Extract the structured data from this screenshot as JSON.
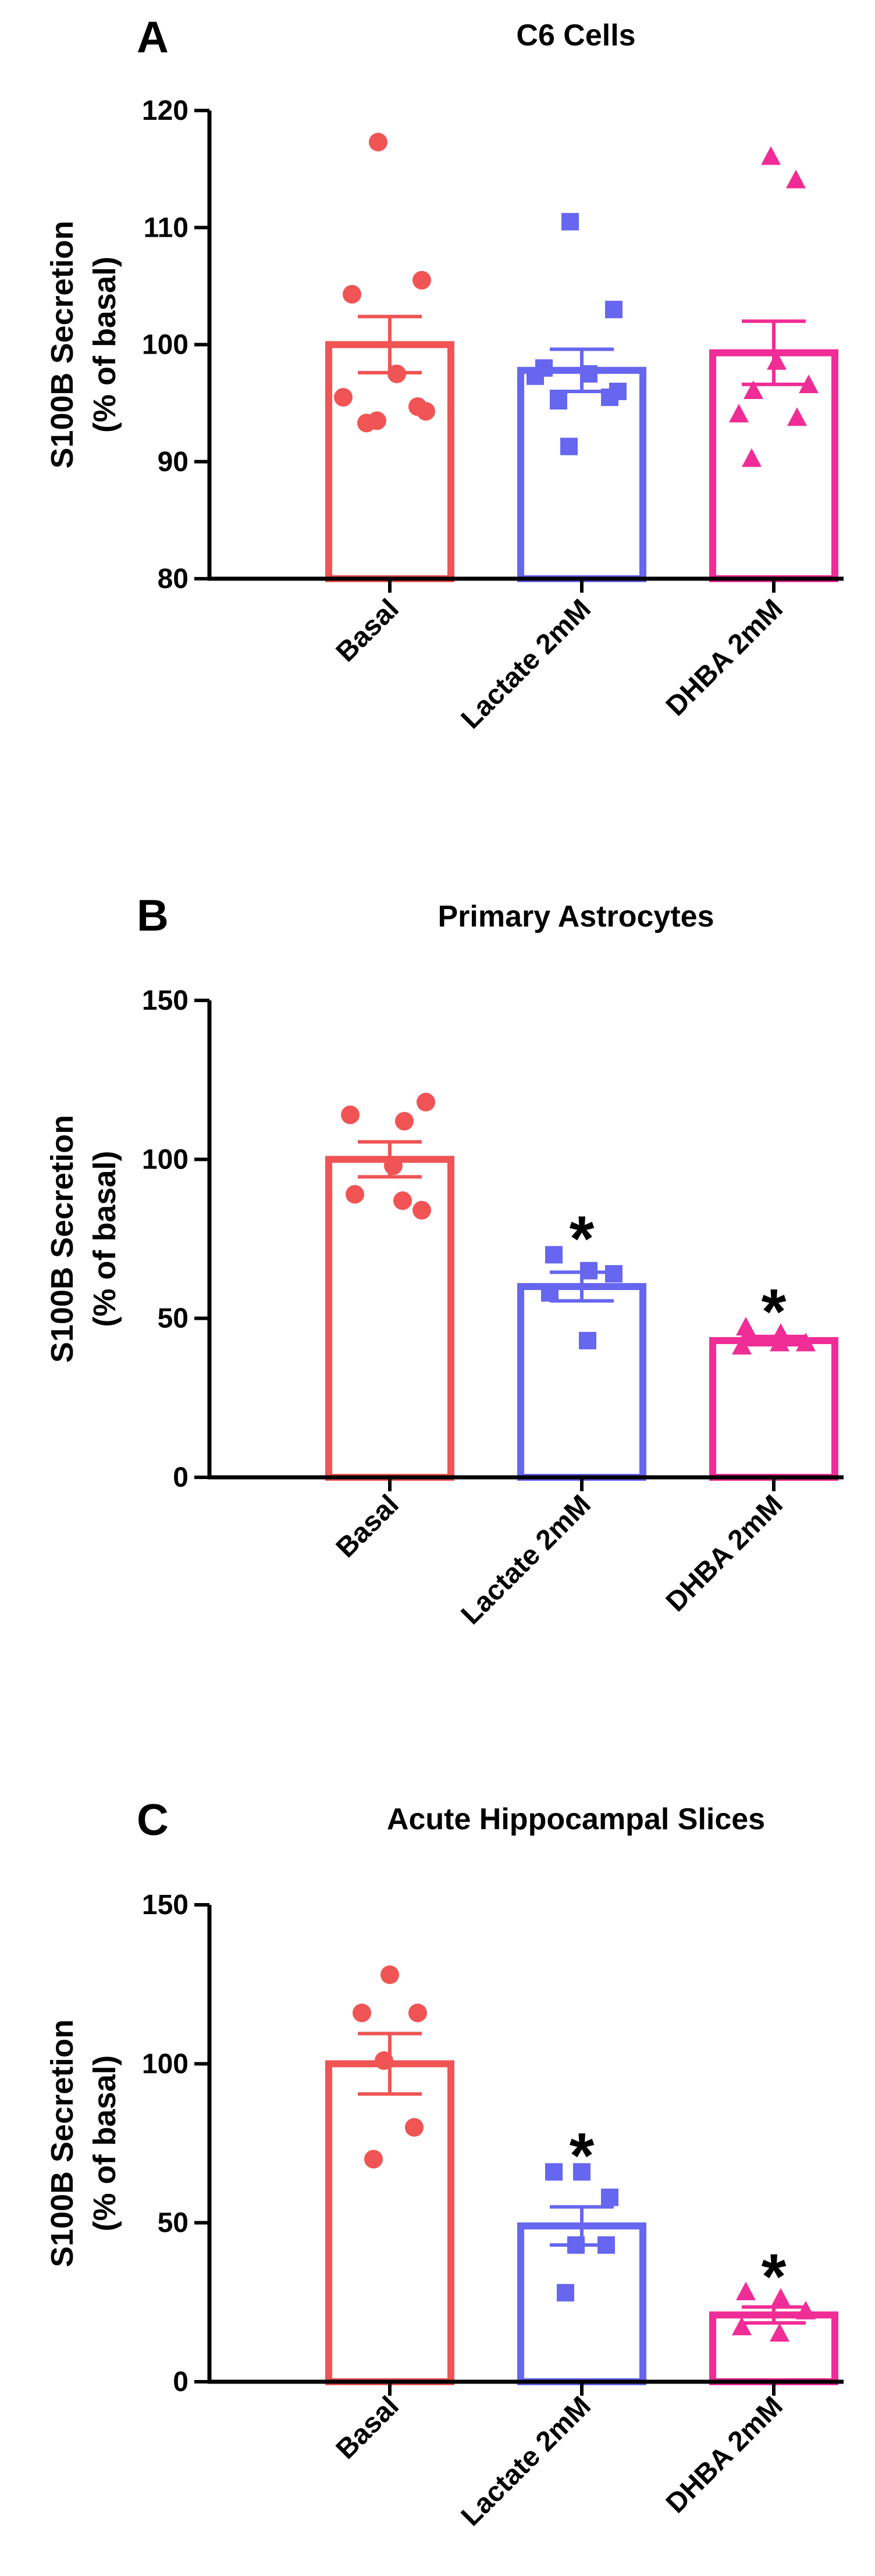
{
  "colors": {
    "basal": "#F05454",
    "lactate": "#6666F0",
    "dhba": "#F02C96",
    "axis": "#000000"
  },
  "chart_data": [
    {
      "panel": "A",
      "type": "bar",
      "title": "C6 Cells",
      "ylabel": "S100B Secretion\n(% of basal)",
      "ylim": [
        80,
        120
      ],
      "yticks": [
        80,
        90,
        100,
        110,
        120
      ],
      "grid": false,
      "categories": [
        "Basal",
        "Lactate 2mM",
        "DHBA 2mM"
      ],
      "series": [
        {
          "category": "Basal",
          "marker": "circle",
          "color": "#F05454",
          "mean": 100,
          "sem": 2.4,
          "points": [
            117.3,
            105.5,
            104.3,
            97.5,
            95.5,
            94.3,
            94.7,
            93.3,
            93.5
          ],
          "significant": false
        },
        {
          "category": "Lactate 2mM",
          "marker": "square",
          "color": "#6666F0",
          "mean": 97.8,
          "sem": 1.8,
          "points": [
            110.5,
            103,
            98,
            97.5,
            97.3,
            96,
            95.5,
            95.2,
            91.3
          ],
          "significant": false
        },
        {
          "category": "DHBA 2mM",
          "marker": "triangle",
          "color": "#F02C96",
          "mean": 99.3,
          "sem": 2.7,
          "points": [
            116,
            114,
            98.5,
            96.5,
            96,
            94,
            93.7,
            90.2
          ],
          "significant": false
        }
      ]
    },
    {
      "panel": "B",
      "type": "bar",
      "title": "Primary Astrocytes",
      "ylabel": "S100B Secretion\n(% of basal)",
      "ylim": [
        0,
        150
      ],
      "yticks": [
        0,
        50,
        100,
        150
      ],
      "grid": false,
      "categories": [
        "Basal",
        "Lactate 2mM",
        "DHBA 2mM"
      ],
      "series": [
        {
          "category": "Basal",
          "marker": "circle",
          "color": "#F05454",
          "mean": 100,
          "sem": 5.5,
          "points": [
            118,
            114,
            112,
            98,
            89,
            87,
            84
          ],
          "significant": false
        },
        {
          "category": "Lactate 2mM",
          "marker": "square",
          "color": "#6666F0",
          "mean": 60,
          "sem": 4.5,
          "points": [
            70,
            65,
            64,
            58,
            43
          ],
          "significant": true
        },
        {
          "category": "DHBA 2mM",
          "marker": "triangle",
          "color": "#F02C96",
          "mean": 43,
          "sem": 1.3,
          "points": [
            47,
            45,
            42,
            41,
            42
          ],
          "significant": true
        }
      ]
    },
    {
      "panel": "C",
      "type": "bar",
      "title": "Acute Hippocampal Slices",
      "ylabel": "S100B Secretion\n(% of basal)",
      "ylim": [
        0,
        150
      ],
      "yticks": [
        0,
        50,
        100,
        150
      ],
      "grid": false,
      "categories": [
        "Basal",
        "Lactate 2mM",
        "DHBA 2mM"
      ],
      "series": [
        {
          "category": "Basal",
          "marker": "circle",
          "color": "#F05454",
          "mean": 100,
          "sem": 9.5,
          "points": [
            128,
            116,
            116,
            101,
            80,
            70
          ],
          "significant": false
        },
        {
          "category": "Lactate 2mM",
          "marker": "square",
          "color": "#6666F0",
          "mean": 49,
          "sem": 6,
          "points": [
            66,
            66,
            58,
            43,
            43,
            28
          ],
          "significant": true
        },
        {
          "category": "DHBA 2mM",
          "marker": "triangle",
          "color": "#F02C96",
          "mean": 21,
          "sem": 2.5,
          "points": [
            28,
            26,
            22,
            17,
            15
          ],
          "significant": true
        }
      ]
    }
  ]
}
